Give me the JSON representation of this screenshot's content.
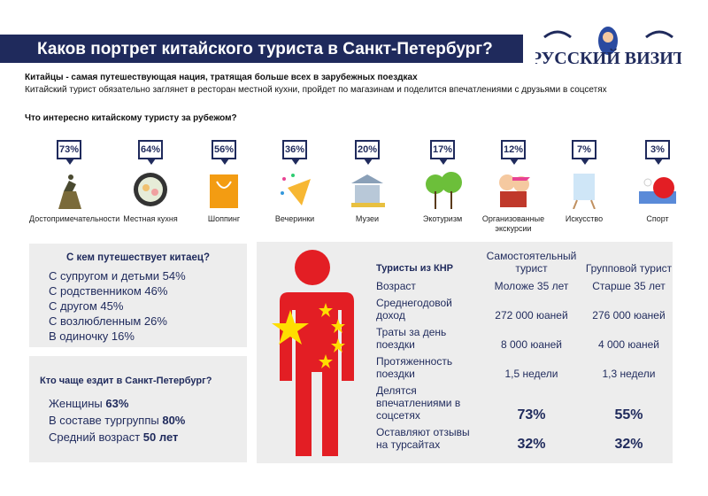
{
  "header": {
    "title": "Каков портрет китайского туриста в Санкт-Петербург?",
    "logo_text": "РУССКИЙ ВИЗИТ"
  },
  "intro": {
    "headline": "Китайцы - самая путешествующая нация, тратящая больше всех в зарубежных поездках",
    "text": "Китайский турист обязательно заглянет в ресторан местной кухни, пройдет по магазинам и поделится впечатлениями с друзьями в соцсетях"
  },
  "interests": {
    "question": "Что интересно китайскому туристу за рубежом?",
    "items": [
      {
        "percent": "73%",
        "label": "Достопримечательности",
        "icon": "statue-icon"
      },
      {
        "percent": "64%",
        "label": "Местная кухня",
        "icon": "food-bowl-icon"
      },
      {
        "percent": "56%",
        "label": "Шоппинг",
        "icon": "shopping-bag-icon"
      },
      {
        "percent": "36%",
        "label": "Вечеринки",
        "icon": "party-popper-icon"
      },
      {
        "percent": "20%",
        "label": "Музеи",
        "icon": "museum-icon"
      },
      {
        "percent": "17%",
        "label": "Экотуризм",
        "icon": "trees-icon"
      },
      {
        "percent": "12%",
        "label": "Организованные экскурсии",
        "icon": "tourists-icon"
      },
      {
        "percent": "7%",
        "label": "Искусство",
        "icon": "easel-icon"
      },
      {
        "percent": "3%",
        "label": "Спорт",
        "icon": "ping-pong-icon"
      }
    ]
  },
  "companions": {
    "title": "С кем путешествует китаец?",
    "items": [
      "С супругом и детьми 54%",
      "С родственником 46%",
      "С другом 45%",
      "С возлюбленным 26%",
      "В одиночку 16%"
    ]
  },
  "spb": {
    "title": "Кто чаще ездит в Санкт-Петербург?",
    "items": [
      {
        "label": "Женщины ",
        "value": "63%"
      },
      {
        "label": "В составе тургруппы ",
        "value": "80%"
      },
      {
        "label": "Средний возраст ",
        "value": "50 лет"
      }
    ]
  },
  "comparison": {
    "headers": [
      "Туристы из КНР",
      "Самостоятельный турист",
      "Групповой турист"
    ],
    "rows": [
      [
        "Возраст",
        "Моложе 35 лет",
        "Старше 35 лет"
      ],
      [
        "Среднегодовой доход",
        "272 000 юаней",
        "276 000 юаней"
      ],
      [
        "Траты за день поездки",
        "8 000 юаней",
        "4 000 юаней"
      ],
      [
        "Протяженность поездки",
        "1,5 недели",
        "1,3 недели"
      ],
      [
        "Делятся впечатлениями в соцсетях",
        "73%",
        "55%"
      ],
      [
        "Оставляют отзывы на турсайтах",
        "32%",
        "32%"
      ]
    ]
  },
  "colors": {
    "navy": "#1f2a5c",
    "red": "#e31e24",
    "yellow": "#ffde00",
    "panel": "#ededed"
  }
}
